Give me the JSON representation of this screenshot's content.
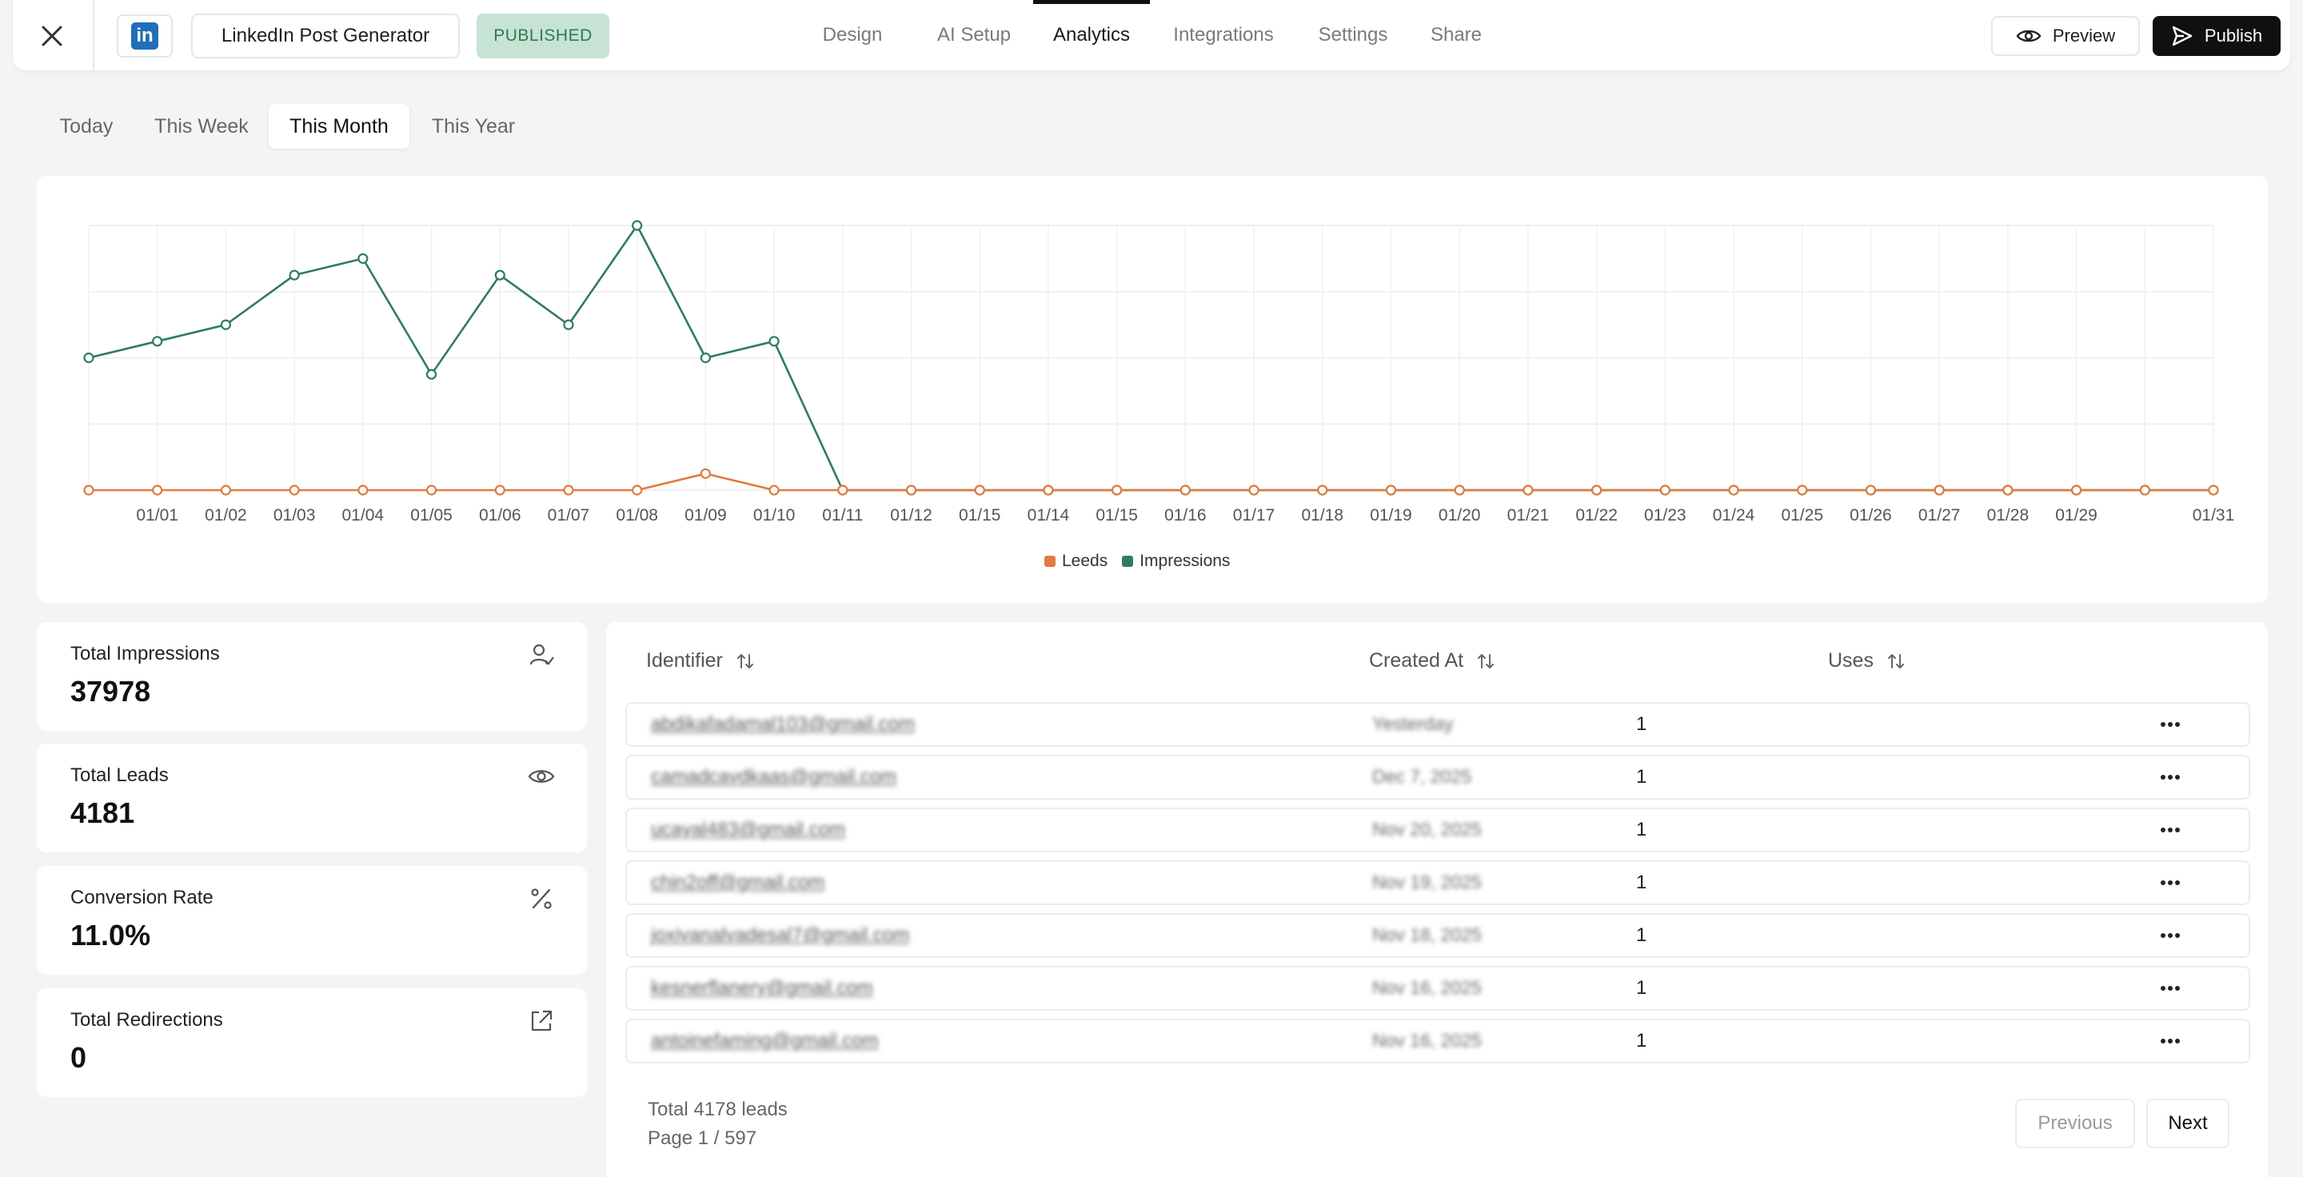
{
  "header": {
    "close_icon": "close-icon",
    "brand_icon": "linkedin-icon",
    "brand_glyph": "in",
    "project_name": "LinkedIn Post Generator",
    "status": "PUBLISHED",
    "tabs": [
      {
        "label": "Design",
        "active": false
      },
      {
        "label": "AI Setup",
        "active": false
      },
      {
        "label": "Analytics",
        "active": true
      },
      {
        "label": "Integrations",
        "active": false
      },
      {
        "label": "Settings",
        "active": false
      },
      {
        "label": "Share",
        "active": false
      }
    ],
    "preview_label": "Preview",
    "publish_label": "Publish"
  },
  "range_tabs": [
    {
      "label": "Today",
      "active": false
    },
    {
      "label": "This Week",
      "active": false
    },
    {
      "label": "This Month",
      "active": true
    },
    {
      "label": "This Year",
      "active": false
    }
  ],
  "colors": {
    "leads": "#e07a3f",
    "impressions": "#2f7d5b",
    "badge_bg": "#c7e3d3",
    "badge_text": "#2e7a54"
  },
  "chart_data": {
    "type": "line",
    "categories": [
      "",
      "01/01",
      "01/02",
      "01/03",
      "01/04",
      "01/05",
      "01/06",
      "01/07",
      "01/08",
      "01/09",
      "01/10",
      "01/11",
      "01/12",
      "01/15",
      "01/14",
      "01/15",
      "01/16",
      "01/17",
      "01/18",
      "01/19",
      "01/20",
      "01/21",
      "01/22",
      "01/23",
      "01/24",
      "01/25",
      "01/26",
      "01/27",
      "01/28",
      "01/29",
      "",
      "01/31"
    ],
    "series": [
      {
        "name": "Leeds",
        "color": "#e07a3f",
        "values": [
          0,
          0,
          0,
          0,
          0,
          0,
          0,
          0,
          0,
          10,
          0,
          0,
          0,
          0,
          0,
          0,
          0,
          0,
          0,
          0,
          0,
          0,
          0,
          0,
          0,
          0,
          0,
          0,
          0,
          0,
          0,
          0
        ]
      },
      {
        "name": "Impressions",
        "color": "#2f7d5b",
        "values": [
          80,
          90,
          100,
          130,
          140,
          70,
          130,
          100,
          160,
          80,
          90,
          0,
          0,
          0,
          0,
          0,
          0,
          0,
          0,
          0,
          0,
          0,
          0,
          0,
          0,
          0,
          0,
          0,
          0,
          0,
          0,
          0
        ]
      }
    ],
    "ylim": [
      0,
      160
    ],
    "grid": true,
    "legend": "bottom-center",
    "title": "",
    "xlabel": "",
    "ylabel": ""
  },
  "stats": [
    {
      "label": "Total Impressions",
      "value": "37978",
      "icon": "user-check-icon"
    },
    {
      "label": "Total Leads",
      "value": "4181",
      "icon": "eye-icon"
    },
    {
      "label": "Conversion Rate",
      "value": "11.0%",
      "icon": "percent-icon"
    },
    {
      "label": "Total Redirections",
      "value": "0",
      "icon": "external-link-icon"
    }
  ],
  "table": {
    "columns": [
      "Identifier",
      "Created At",
      "Uses"
    ],
    "rows": [
      {
        "identifier": "abdikafadamal103@gmail.com",
        "created": "Yesterday",
        "uses": "1"
      },
      {
        "identifier": "camadcavdkaas@gmail.com",
        "created": "Dec 7, 2025",
        "uses": "1"
      },
      {
        "identifier": "ucayal483@gmail.com",
        "created": "Nov 20, 2025",
        "uses": "1"
      },
      {
        "identifier": "chin2off@gmail.com",
        "created": "Nov 19, 2025",
        "uses": "1"
      },
      {
        "identifier": "joxivanalvadesal7@gmail.com",
        "created": "Nov 18, 2025",
        "uses": "1"
      },
      {
        "identifier": "kesnerflanery@gmail.com",
        "created": "Nov 16, 2025",
        "uses": "1"
      },
      {
        "identifier": "antoinefaming@gmail.com",
        "created": "Nov 16, 2025",
        "uses": "1"
      }
    ],
    "total_text": "Total 4178 leads",
    "page_text": "Page 1 / 597",
    "prev_label": "Previous",
    "next_label": "Next"
  }
}
